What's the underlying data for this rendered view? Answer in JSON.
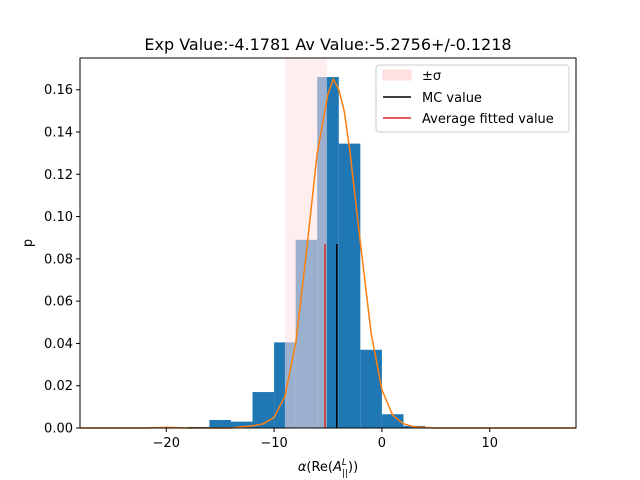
{
  "chart_data": {
    "type": "histogram",
    "title": "Exp Value:-4.1781 Av Value:-5.2756+/-0.1218",
    "xlabel": "α(Re(Aᴸ‖))",
    "ylabel": "p",
    "xlim": [
      -28,
      18
    ],
    "ylim": [
      0,
      0.175
    ],
    "x_ticks": [
      -20,
      -10,
      0,
      10
    ],
    "x_tick_labels": [
      "−20",
      "−10",
      "0",
      "10"
    ],
    "y_ticks": [
      0,
      0.02,
      0.04,
      0.06,
      0.08,
      0.1,
      0.12,
      0.14,
      0.16
    ],
    "y_tick_labels": [
      "0.00",
      "0.02",
      "0.04",
      "0.06",
      "0.08",
      "0.10",
      "0.12",
      "0.14",
      "0.16"
    ],
    "grid": false,
    "legend_position": "top-right",
    "colors": {
      "histogram": "#1f77b4",
      "fit": "#ff7f0e",
      "band": "#ffe0e3",
      "mc_line": "#000000",
      "avg_line": "#d62728"
    },
    "histogram": {
      "bin_edges": [
        -18,
        -16,
        -14,
        -12,
        -10,
        -8,
        -6,
        -4,
        -2,
        0,
        2,
        4
      ],
      "values": [
        0.0005,
        0.0038,
        0.003,
        0.017,
        0.0405,
        0.089,
        0.166,
        0.1345,
        0.037,
        0.0065,
        0.001
      ]
    },
    "fit_curve": {
      "name": "fit",
      "x": [
        -28,
        -22,
        -20,
        -18,
        -16,
        -14,
        -13,
        -12,
        -11,
        -10,
        -9,
        -8,
        -7,
        -6,
        -5,
        -4.5,
        -4,
        -3.5,
        -3,
        -2,
        -1,
        0,
        1,
        2,
        3,
        5,
        10,
        18
      ],
      "y": [
        0,
        0,
        0.0003,
        0,
        0,
        0,
        0.0005,
        0.001,
        0.002,
        0.005,
        0.015,
        0.04,
        0.083,
        0.13,
        0.158,
        0.165,
        0.16,
        0.15,
        0.132,
        0.088,
        0.045,
        0.018,
        0.006,
        0.002,
        0.0005,
        0,
        0,
        0
      ]
    },
    "sigma_band": {
      "name": "±σ",
      "x_range": [
        -9.0,
        -5.1
      ]
    },
    "mc_value": {
      "name": "MC value",
      "x": -4.1781,
      "y_top": 0.087
    },
    "average_fitted_value": {
      "name": "Average fitted value",
      "x": -5.2756,
      "y_top": 0.087
    },
    "legend": [
      "±σ",
      "MC value",
      "Average fitted value"
    ]
  }
}
